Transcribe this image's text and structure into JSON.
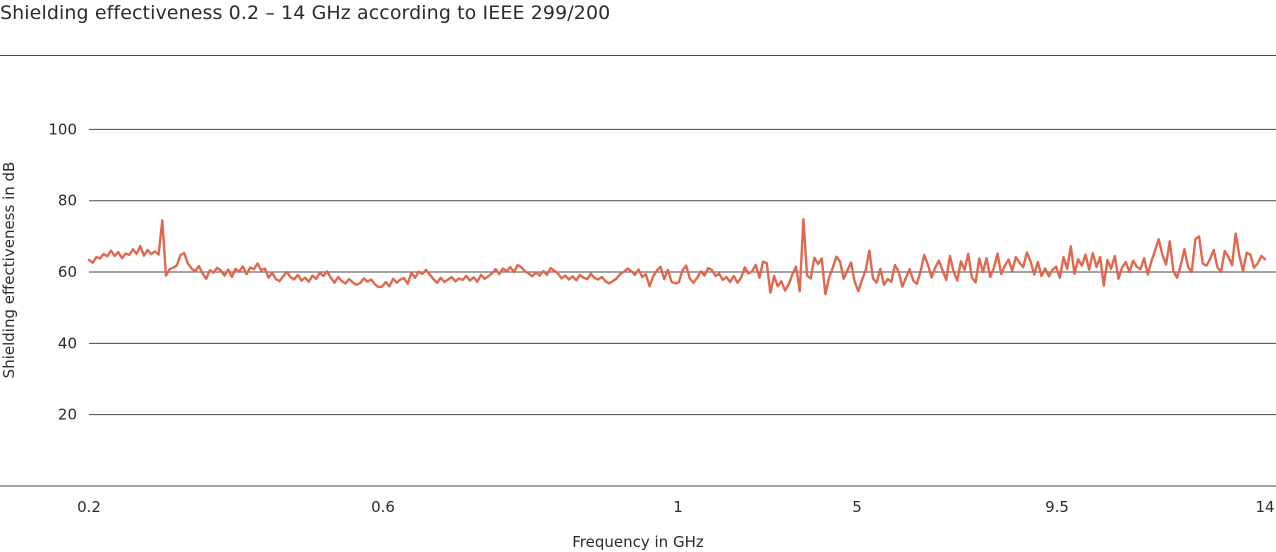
{
  "title": "Shielding effectiveness 0.2 – 14 GHz according to IEEE 299/200",
  "chart_data": {
    "type": "line",
    "xlabel": "Frequency in GHz",
    "ylabel": "Shielding effectiveness in dB",
    "ylim": [
      0,
      110
    ],
    "y_ticks": [
      "20",
      "40",
      "60",
      "80",
      "100"
    ],
    "x_ticks": [
      "0.2",
      "0.6",
      "1",
      "5",
      "9.5",
      "14"
    ],
    "grid": "horizontal",
    "legend": "none",
    "line_color": "#e0684e",
    "series": [
      {
        "values": [
          63.4,
          62.6,
          64.2,
          63.8,
          65.1,
          64.4,
          66.0,
          64.5,
          65.6,
          63.9,
          65.2,
          64.8,
          66.4,
          65.1,
          67.3,
          64.6,
          66.2,
          65.0,
          65.8,
          64.9,
          74.5,
          59.0,
          60.8,
          61.2,
          61.9,
          64.8,
          65.3,
          62.4,
          61.0,
          60.2,
          61.7,
          59.6,
          58.1,
          60.5,
          59.8,
          61.2,
          60.4,
          59.0,
          60.7,
          58.6,
          60.9,
          60.1,
          61.6,
          59.4,
          61.3,
          60.8,
          62.4,
          60.5,
          61.0,
          58.4,
          59.8,
          58.0,
          57.5,
          58.8,
          60.0,
          58.6,
          57.9,
          59.2,
          57.6,
          58.4,
          57.3,
          59.0,
          58.1,
          59.8,
          58.9,
          60.2,
          58.4,
          57.0,
          58.6,
          57.5,
          56.8,
          58.0,
          57.1,
          56.4,
          56.9,
          58.2,
          57.3,
          57.9,
          56.6,
          55.8,
          55.9,
          57.2,
          56.0,
          58.1,
          57.0,
          57.9,
          58.3,
          56.7,
          59.8,
          58.4,
          60.1,
          59.5,
          60.6,
          59.3,
          58.0,
          57.0,
          58.4,
          57.2,
          57.9,
          58.6,
          57.4,
          58.2,
          57.8,
          58.9,
          57.6,
          58.5,
          57.3,
          59.2,
          58.1,
          58.8,
          59.6,
          60.8,
          59.4,
          61.0,
          60.2,
          61.4,
          60.0,
          62.0,
          61.3,
          60.2,
          59.6,
          58.8,
          59.9,
          59.0,
          60.3,
          59.2,
          61.1,
          60.4,
          59.6,
          58.2,
          59.0,
          57.9,
          58.8,
          57.7,
          59.2,
          58.4,
          58.0,
          59.5,
          58.3,
          57.9,
          58.6,
          57.4,
          56.8,
          57.5,
          58.2,
          59.4,
          60.1,
          61.0,
          60.3,
          59.2,
          60.7,
          58.6,
          59.4,
          56.0,
          58.8,
          60.4,
          61.5,
          58.0,
          60.6,
          57.3,
          56.8,
          57.1,
          60.5,
          61.8,
          58.2,
          57.0,
          58.4,
          60.2,
          59.0,
          61.1,
          60.6,
          58.9,
          59.5,
          57.8,
          58.6,
          57.2,
          58.9,
          57.0,
          58.4,
          61.3,
          59.6,
          60.2,
          62.0,
          58.4,
          62.9,
          62.5,
          54.2,
          58.9,
          56.0,
          57.4,
          54.8,
          56.6,
          59.3,
          61.5,
          54.6,
          74.8,
          59.0,
          58.2,
          64.0,
          62.3,
          63.8,
          53.8,
          58.4,
          61.2,
          64.3,
          63.0,
          58.1,
          60.4,
          62.7,
          57.3,
          54.6,
          57.8,
          60.5,
          66.0,
          58.2,
          57.0,
          60.9,
          56.4,
          58.0,
          57.3,
          62.0,
          60.1,
          55.9,
          58.4,
          60.8,
          57.6,
          56.7,
          60.3,
          64.8,
          62.0,
          58.5,
          61.3,
          63.2,
          60.4,
          57.8,
          64.5,
          60.1,
          57.6,
          63.0,
          60.6,
          65.1,
          58.4,
          57.1,
          63.8,
          60.0,
          63.9,
          58.6,
          61.2,
          65.2,
          59.4,
          61.8,
          63.5,
          60.4,
          64.2,
          62.6,
          61.4,
          65.5,
          63.0,
          59.3,
          62.8,
          58.9,
          61.0,
          58.8,
          60.6,
          61.5,
          58.4,
          64.2,
          60.9,
          67.2,
          59.5,
          63.6,
          61.8,
          64.9,
          60.7,
          65.3,
          61.4,
          64.2,
          56.2,
          63.4,
          60.9,
          64.5,
          58.1,
          61.3,
          62.8,
          60.0,
          63.2,
          61.5,
          60.8,
          63.9,
          59.3,
          63.0,
          66.1,
          69.2,
          64.8,
          62.1,
          68.6,
          60.2,
          58.4,
          61.9,
          66.4,
          61.5,
          60.0,
          69.3,
          70.0,
          62.4,
          61.8,
          63.6,
          66.2,
          61.4,
          60.0,
          65.9,
          64.3,
          61.9,
          70.8,
          64.6,
          60.3,
          65.4,
          64.9,
          61.2,
          62.4,
          64.5,
          63.6
        ]
      }
    ]
  }
}
